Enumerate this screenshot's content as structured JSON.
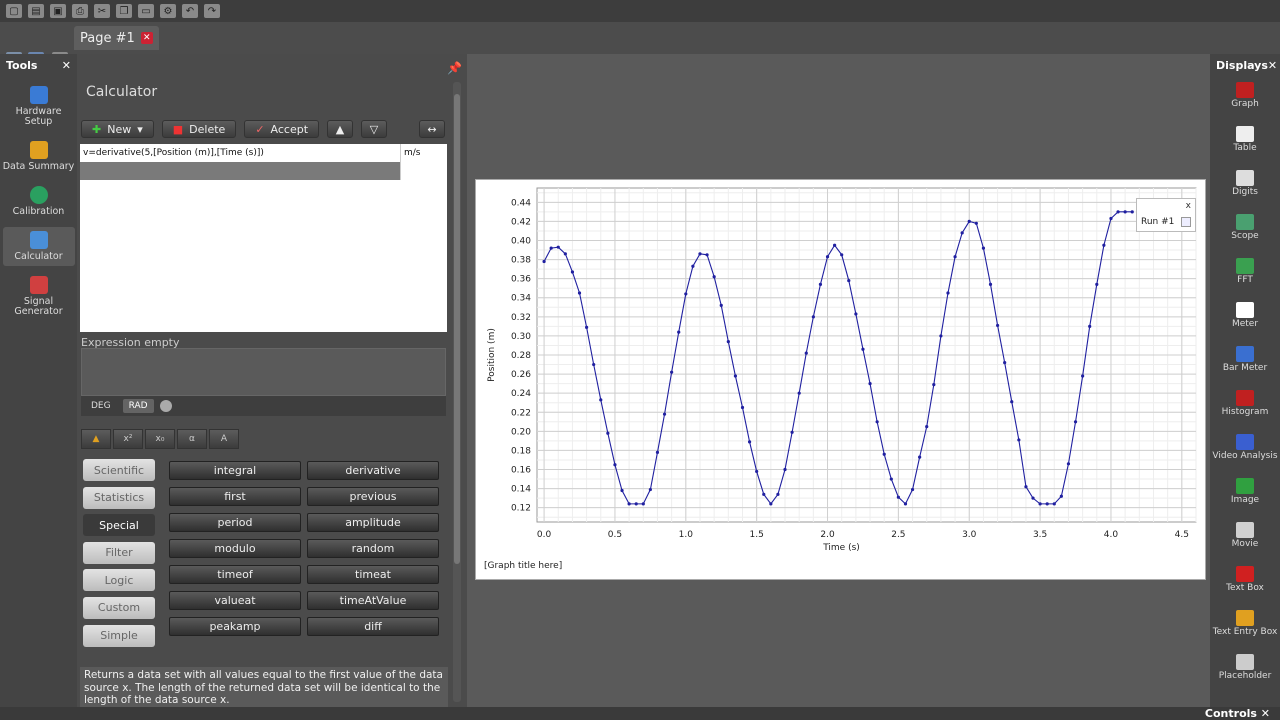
{
  "tab": {
    "label": "Page #1"
  },
  "tools_panel": {
    "title": "Tools",
    "items": [
      {
        "label": "Hardware Setup",
        "icon": "hardware-setup-icon",
        "color": "#3a7bd5"
      },
      {
        "label": "Data Summary",
        "icon": "data-summary-icon",
        "color": "#e0a020"
      },
      {
        "label": "Calibration",
        "icon": "calibration-icon",
        "color": "#2aa060"
      },
      {
        "label": "Calculator",
        "icon": "calculator-icon",
        "color": "#4a8fd8",
        "active": true
      },
      {
        "label": "Signal Generator",
        "icon": "signal-generator-icon",
        "color": "#d04040"
      }
    ]
  },
  "calculator": {
    "title": "Calculator",
    "buttons": {
      "new": "New",
      "delete": "Delete",
      "accept": "Accept"
    },
    "expression": "v=derivative(5,[Position (m)],[Time (s)])",
    "unit": "m/s",
    "status": "Expression empty",
    "modes": [
      "DEG",
      "RAD"
    ],
    "active_mode": "RAD",
    "categories": [
      "Scientific",
      "Statistics",
      "Special",
      "Filter",
      "Logic",
      "Custom",
      "Simple"
    ],
    "active_category": "Special",
    "functions": [
      "integral",
      "derivative",
      "first",
      "previous",
      "period",
      "amplitude",
      "modulo",
      "random",
      "timeof",
      "timeat",
      "valueat",
      "timeAtValue",
      "peakamp",
      "diff"
    ],
    "description": "Returns a data set with all values equal to the first value of the data source x. The length of the returned data set will be identical to the length of the data source x."
  },
  "graph": {
    "caption": "[Graph title here]",
    "legend": {
      "run": "Run #1",
      "close": "x"
    }
  },
  "chart_data": {
    "type": "line",
    "xlabel": "Time (s)",
    "ylabel": "Position (m)",
    "xlim": [
      -0.05,
      4.6
    ],
    "ylim": [
      0.105,
      0.455
    ],
    "xticks": [
      0.0,
      0.5,
      1.0,
      1.5,
      2.0,
      2.5,
      3.0,
      3.5,
      4.0,
      4.5
    ],
    "yticks": [
      0.12,
      0.14,
      0.16,
      0.18,
      0.2,
      0.22,
      0.24,
      0.26,
      0.28,
      0.3,
      0.32,
      0.34,
      0.36,
      0.38,
      0.4,
      0.42,
      0.44
    ],
    "grid": true,
    "color": "#2020a0",
    "series": [
      {
        "name": "Run #1",
        "x": [
          0.0,
          0.05,
          0.1,
          0.15,
          0.2,
          0.25,
          0.3,
          0.35,
          0.4,
          0.45,
          0.5,
          0.55,
          0.6,
          0.65,
          0.7,
          0.75,
          0.8,
          0.85,
          0.9,
          0.95,
          1.0,
          1.05,
          1.1,
          1.15,
          1.2,
          1.25,
          1.3,
          1.35,
          1.4,
          1.45,
          1.5,
          1.55,
          1.6,
          1.65,
          1.7,
          1.75,
          1.8,
          1.85,
          1.9,
          1.95,
          2.0,
          2.05,
          2.1,
          2.15,
          2.2,
          2.25,
          2.3,
          2.35,
          2.4,
          2.45,
          2.5,
          2.55,
          2.6,
          2.65,
          2.7,
          2.75,
          2.8,
          2.85,
          2.9,
          2.95,
          3.0,
          3.05,
          3.1,
          3.15,
          3.2,
          3.25,
          3.3,
          3.35,
          3.4,
          3.45,
          3.5,
          3.55,
          3.6,
          3.65,
          3.7,
          3.75,
          3.8,
          3.85,
          3.9,
          3.95,
          4.0,
          4.05,
          4.1,
          4.15
        ],
        "y": [
          0.378,
          0.392,
          0.393,
          0.386,
          0.367,
          0.345,
          0.309,
          0.27,
          0.233,
          0.198,
          0.165,
          0.138,
          0.124,
          0.124,
          0.124,
          0.139,
          0.178,
          0.218,
          0.262,
          0.304,
          0.344,
          0.373,
          0.386,
          0.385,
          0.362,
          0.332,
          0.294,
          0.258,
          0.225,
          0.189,
          0.158,
          0.134,
          0.124,
          0.134,
          0.16,
          0.199,
          0.24,
          0.282,
          0.32,
          0.354,
          0.383,
          0.395,
          0.385,
          0.358,
          0.323,
          0.286,
          0.25,
          0.21,
          0.176,
          0.15,
          0.131,
          0.124,
          0.139,
          0.173,
          0.205,
          0.249,
          0.3,
          0.345,
          0.383,
          0.408,
          0.42,
          0.418,
          0.392,
          0.354,
          0.311,
          0.272,
          0.231,
          0.191,
          0.142,
          0.13,
          0.124,
          0.124,
          0.124,
          0.132,
          0.166,
          0.21,
          0.258,
          0.31,
          0.354,
          0.395,
          0.423,
          0.43,
          0.43,
          0.43
        ]
      }
    ]
  },
  "displays_panel": {
    "title": "Displays",
    "items": [
      {
        "label": "Graph",
        "icon": "graph-icon",
        "color": "#c02020"
      },
      {
        "label": "Table",
        "icon": "table-icon",
        "color": "#eeeeee"
      },
      {
        "label": "Digits",
        "icon": "digits-icon",
        "color": "#dddddd"
      },
      {
        "label": "Scope",
        "icon": "scope-icon",
        "color": "#4aa070"
      },
      {
        "label": "FFT",
        "icon": "fft-icon",
        "color": "#3aa050"
      },
      {
        "label": "Meter",
        "icon": "meter-icon",
        "color": "#ffffff"
      },
      {
        "label": "Bar Meter",
        "icon": "bar-meter-icon",
        "color": "#3a6fd0"
      },
      {
        "label": "Histogram",
        "icon": "histogram-icon",
        "color": "#c02020"
      },
      {
        "label": "Video Analysis",
        "icon": "video-analysis-icon",
        "color": "#3a5fd0"
      },
      {
        "label": "Image",
        "icon": "image-icon",
        "color": "#30a040"
      },
      {
        "label": "Movie",
        "icon": "movie-icon",
        "color": "#d0d0d0"
      },
      {
        "label": "Text Box",
        "icon": "text-box-icon",
        "color": "#d02020"
      },
      {
        "label": "Text Entry Box",
        "icon": "text-entry-box-icon",
        "color": "#e0a020"
      },
      {
        "label": "Placeholder",
        "icon": "placeholder-icon",
        "color": "#cccccc"
      }
    ]
  },
  "controls": {
    "label": "Controls"
  }
}
